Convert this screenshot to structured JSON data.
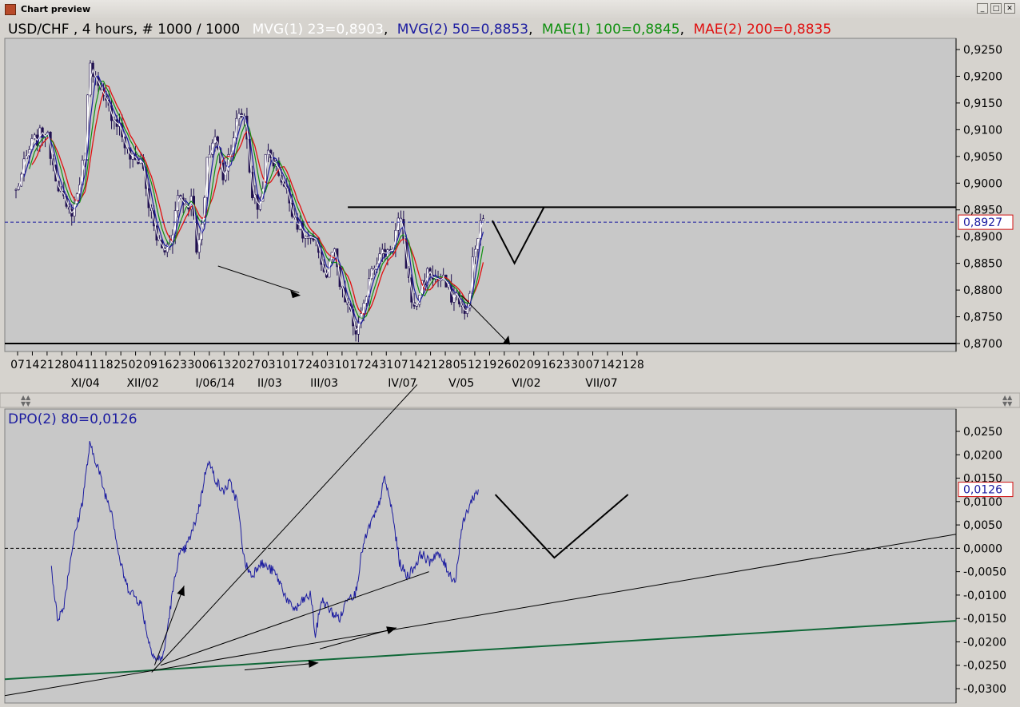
{
  "window": {
    "title": "Chart preview",
    "minimize_glyph": "_",
    "maximize_glyph": "□",
    "close_glyph": "✕"
  },
  "colors": {
    "panel_bg": "#c8c8c8",
    "candle": "#201050",
    "mvg1": "#ffffff",
    "mvg2": "#1c1ca0",
    "mae1": "#109010",
    "mae2": "#e01010",
    "dpo": "#1c1ca0",
    "last_price_box": "#d01010",
    "green_trend": "#106838"
  },
  "header": {
    "symbol": "USD/CHF , 4 hours, # 1000 / 1000",
    "mvg1": "MVG(1) 23=0,8903",
    "sep1": ",",
    "mvg2": "MVG(2) 50=0,8853",
    "sep2": ",",
    "mae1": "MAE(1) 100=0,8845",
    "sep3": ",",
    "mae2": "MAE(2) 200=0,8835"
  },
  "chart_data": [
    {
      "type": "candlestick",
      "title": "USD/CHF , 4 hours, # 1000 / 1000",
      "ylim": [
        0.87,
        0.925
      ],
      "ytick_labels": [
        "0,9250",
        "0,9200",
        "0,9150",
        "0,9100",
        "0,9050",
        "0,9000",
        "0,8950",
        "0,8900",
        "0,8850",
        "0,8800",
        "0,8750",
        "0,8700"
      ],
      "last_value": 0.8927,
      "last_value_label": "0,8927",
      "resistance": 0.8955,
      "support": 0.87,
      "xtick_labels": [
        "07",
        "14",
        "21",
        "28",
        "04",
        "11",
        "18",
        "25",
        "02",
        "09",
        "16",
        "23",
        "30",
        "06",
        "13",
        "20",
        "27",
        "03",
        "10",
        "17",
        "24",
        "03",
        "10",
        "17",
        "24",
        "31",
        "07",
        "14",
        "21",
        "28",
        "05",
        "12",
        "19",
        "26",
        "02",
        "09",
        "16",
        "23",
        "30",
        "07",
        "14",
        "21",
        "28"
      ],
      "month_labels": [
        "XI/04",
        "XII/02",
        "I/06/14",
        "II/03",
        "III/03",
        "IV/07",
        "V/05",
        "VI/02",
        "VII/07"
      ],
      "anchors": [
        {
          "w": 0,
          "v": 0.8985
        },
        {
          "w": 1,
          "v": 0.907
        },
        {
          "w": 2,
          "v": 0.91
        },
        {
          "w": 2.5,
          "v": 0.904
        },
        {
          "w": 3,
          "v": 0.8985
        },
        {
          "w": 3.5,
          "v": 0.894
        },
        {
          "w": 4,
          "v": 0.896
        },
        {
          "w": 4.7,
          "v": 0.906
        },
        {
          "w": 5,
          "v": 0.924
        },
        {
          "w": 5.5,
          "v": 0.918
        },
        {
          "w": 6,
          "v": 0.915
        },
        {
          "w": 7,
          "v": 0.911
        },
        {
          "w": 7.5,
          "v": 0.906
        },
        {
          "w": 8,
          "v": 0.904
        },
        {
          "w": 8.5,
          "v": 0.905
        },
        {
          "w": 9,
          "v": 0.896
        },
        {
          "w": 9.5,
          "v": 0.89
        },
        {
          "w": 10,
          "v": 0.887
        },
        {
          "w": 10.5,
          "v": 0.8895
        },
        {
          "w": 11,
          "v": 0.898
        },
        {
          "w": 11.5,
          "v": 0.896
        },
        {
          "w": 12,
          "v": 0.897
        },
        {
          "w": 12.3,
          "v": 0.886
        },
        {
          "w": 12.7,
          "v": 0.894
        },
        {
          "w": 13,
          "v": 0.905
        },
        {
          "w": 13.5,
          "v": 0.909
        },
        {
          "w": 14,
          "v": 0.901
        },
        {
          "w": 14.5,
          "v": 0.906
        },
        {
          "w": 15,
          "v": 0.912
        },
        {
          "w": 15.5,
          "v": 0.913
        },
        {
          "w": 16,
          "v": 0.898
        },
        {
          "w": 16.5,
          "v": 0.895
        },
        {
          "w": 17,
          "v": 0.906
        },
        {
          "w": 17.5,
          "v": 0.904
        },
        {
          "w": 18,
          "v": 0.901
        },
        {
          "w": 18.5,
          "v": 0.897
        },
        {
          "w": 19,
          "v": 0.893
        },
        {
          "w": 19.5,
          "v": 0.89
        },
        {
          "w": 20,
          "v": 0.889
        },
        {
          "w": 20.5,
          "v": 0.888
        },
        {
          "w": 21,
          "v": 0.882
        },
        {
          "w": 21.5,
          "v": 0.888
        },
        {
          "w": 22,
          "v": 0.88
        },
        {
          "w": 22.5,
          "v": 0.877
        },
        {
          "w": 23,
          "v": 0.872
        },
        {
          "w": 23.5,
          "v": 0.875
        },
        {
          "w": 24,
          "v": 0.884
        },
        {
          "w": 24.5,
          "v": 0.886
        },
        {
          "w": 25,
          "v": 0.887
        },
        {
          "w": 25.5,
          "v": 0.888
        },
        {
          "w": 26,
          "v": 0.894
        },
        {
          "w": 26.5,
          "v": 0.884
        },
        {
          "w": 27,
          "v": 0.876
        },
        {
          "w": 27.5,
          "v": 0.881
        },
        {
          "w": 28,
          "v": 0.8835
        },
        {
          "w": 28.5,
          "v": 0.882
        },
        {
          "w": 29,
          "v": 0.8815
        },
        {
          "w": 29.5,
          "v": 0.879
        },
        {
          "w": 30,
          "v": 0.879
        },
        {
          "w": 30.5,
          "v": 0.874
        },
        {
          "w": 31,
          "v": 0.886
        },
        {
          "w": 31.5,
          "v": 0.892
        },
        {
          "w": 31.8,
          "v": 0.893
        }
      ]
    },
    {
      "type": "line",
      "title": "DPO(2) 80=0,0126",
      "ylim": [
        -0.03,
        0.025
      ],
      "ytick_labels": [
        "0,0250",
        "0,0200",
        "0,0150",
        "0,0100",
        "0,0050",
        "0,0000",
        "-0,0050",
        "-0,0100",
        "-0,0150",
        "-0,0200",
        "-0,0250",
        "-0,0300"
      ],
      "last_value": 0.0126,
      "last_value_label": "0,0126",
      "anchors": [
        {
          "w": 2.4,
          "v": -0.004
        },
        {
          "w": 2.8,
          "v": -0.015
        },
        {
          "w": 3.2,
          "v": -0.013
        },
        {
          "w": 3.8,
          "v": 0.0
        },
        {
          "w": 4.5,
          "v": 0.01
        },
        {
          "w": 5,
          "v": 0.022
        },
        {
          "w": 5.5,
          "v": 0.018
        },
        {
          "w": 6,
          "v": 0.012
        },
        {
          "w": 6.5,
          "v": 0.008
        },
        {
          "w": 7,
          "v": -0.002
        },
        {
          "w": 7.5,
          "v": -0.008
        },
        {
          "w": 8,
          "v": -0.01
        },
        {
          "w": 8.5,
          "v": -0.012
        },
        {
          "w": 9,
          "v": -0.02
        },
        {
          "w": 9.5,
          "v": -0.024
        },
        {
          "w": 10,
          "v": -0.023
        },
        {
          "w": 10.5,
          "v": -0.012
        },
        {
          "w": 11,
          "v": -0.002
        },
        {
          "w": 11.5,
          "v": 0.0
        },
        {
          "w": 12,
          "v": 0.004
        },
        {
          "w": 12.5,
          "v": 0.01
        },
        {
          "w": 13,
          "v": 0.019
        },
        {
          "w": 13.5,
          "v": 0.015
        },
        {
          "w": 14,
          "v": 0.012
        },
        {
          "w": 14.5,
          "v": 0.014
        },
        {
          "w": 15,
          "v": 0.01
        },
        {
          "w": 15.5,
          "v": -0.003
        },
        {
          "w": 16,
          "v": -0.006
        },
        {
          "w": 16.5,
          "v": -0.003
        },
        {
          "w": 17,
          "v": -0.004
        },
        {
          "w": 17.5,
          "v": -0.005
        },
        {
          "w": 18,
          "v": -0.008
        },
        {
          "w": 18.5,
          "v": -0.012
        },
        {
          "w": 19,
          "v": -0.013
        },
        {
          "w": 19.5,
          "v": -0.011
        },
        {
          "w": 20,
          "v": -0.01
        },
        {
          "w": 20.3,
          "v": -0.019
        },
        {
          "w": 20.7,
          "v": -0.011
        },
        {
          "w": 21,
          "v": -0.012
        },
        {
          "w": 21.5,
          "v": -0.014
        },
        {
          "w": 22,
          "v": -0.015
        },
        {
          "w": 22.5,
          "v": -0.01
        },
        {
          "w": 23,
          "v": -0.01
        },
        {
          "w": 23.5,
          "v": 0.0
        },
        {
          "w": 24,
          "v": 0.005
        },
        {
          "w": 24.5,
          "v": 0.008
        },
        {
          "w": 25,
          "v": 0.015
        },
        {
          "w": 25.5,
          "v": 0.008
        },
        {
          "w": 26,
          "v": -0.003
        },
        {
          "w": 26.5,
          "v": -0.006
        },
        {
          "w": 27,
          "v": -0.004
        },
        {
          "w": 27.5,
          "v": -0.001
        },
        {
          "w": 28,
          "v": -0.003
        },
        {
          "w": 28.5,
          "v": -0.001
        },
        {
          "w": 29,
          "v": -0.003
        },
        {
          "w": 29.5,
          "v": -0.006
        },
        {
          "w": 29.8,
          "v": -0.007
        },
        {
          "w": 30.2,
          "v": 0.004
        },
        {
          "w": 30.6,
          "v": 0.008
        },
        {
          "w": 31,
          "v": 0.011
        },
        {
          "w": 31.4,
          "v": 0.0126
        }
      ]
    }
  ]
}
